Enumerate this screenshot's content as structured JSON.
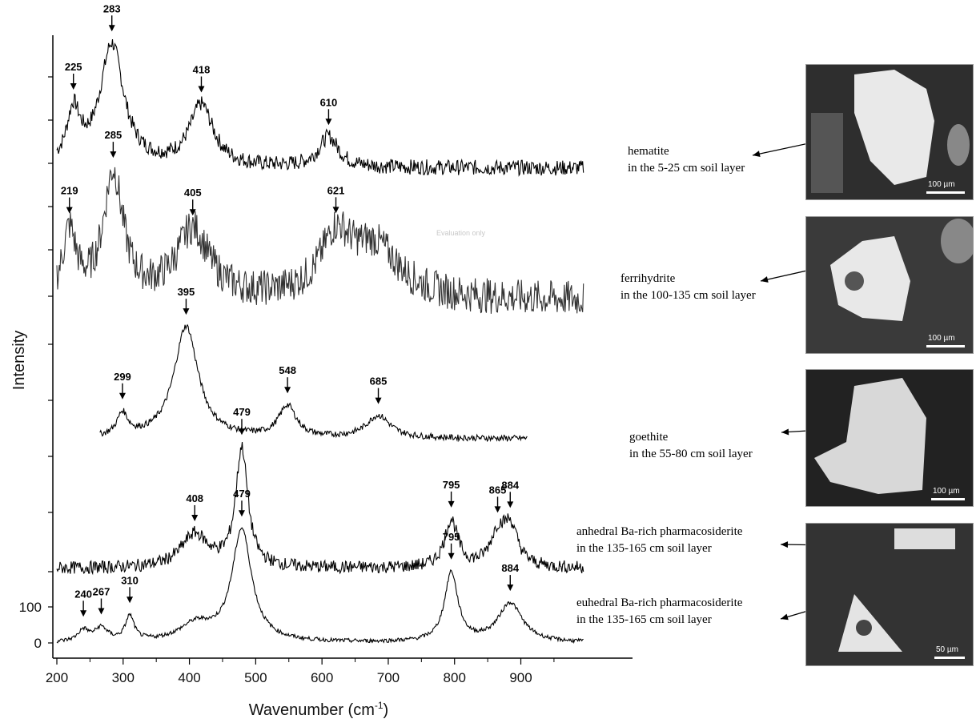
{
  "chart_data": {
    "type": "line",
    "xlabel_main": "Wavenumber (cm",
    "xlabel_sup": "-1",
    "xlabel_close": ")",
    "ylabel": "Intensity",
    "xlim": [
      195,
      1000
    ],
    "xticks": [
      200,
      300,
      400,
      500,
      600,
      700,
      800,
      900
    ],
    "yticks_labeled": [
      0,
      100
    ],
    "series": [
      {
        "name": "hematite",
        "caption": [
          "hematite",
          "in the 5-25 cm soil layer"
        ],
        "x_range": [
          200,
          995
        ],
        "peaks": [
          225,
          283,
          418,
          610
        ],
        "band_widths": [
          12,
          22,
          22,
          18
        ],
        "band_heights": [
          0.42,
          1.0,
          0.5,
          0.25
        ],
        "noise": 0.07
      },
      {
        "name": "ferrihydrite",
        "caption": [
          "ferrihydrite",
          "in the 100-135 cm soil layer"
        ],
        "x_range": [
          200,
          995
        ],
        "peaks": [
          219,
          285,
          405,
          621
        ],
        "band_widths": [
          12,
          18,
          30,
          28
        ],
        "band_heights": [
          0.52,
          1.0,
          0.55,
          0.45
        ],
        "extra_bands": [
          {
            "x": 680,
            "w": 45,
            "h": 0.4
          }
        ],
        "noise": 0.16
      },
      {
        "name": "goethite",
        "caption": [
          "goethite",
          "in  the 55-80 cm soil layer"
        ],
        "x_range": [
          265,
          910
        ],
        "peaks": [
          299,
          395,
          548,
          685
        ],
        "band_widths": [
          10,
          22,
          16,
          22
        ],
        "band_heights": [
          0.2,
          1.0,
          0.28,
          0.2
        ],
        "noise": 0.03
      },
      {
        "name": "anhedral Ba-rich pharmacosiderite",
        "caption": [
          "anhedral Ba-rich pharmacosiderite",
          "in the 135-165 cm soil layer"
        ],
        "x_range": [
          200,
          995
        ],
        "peaks": [
          408,
          479,
          795,
          865,
          884
        ],
        "band_widths": [
          25,
          11,
          12,
          14,
          14
        ],
        "band_heights": [
          0.28,
          1.0,
          0.4,
          0.25,
          0.32
        ],
        "noise": 0.06
      },
      {
        "name": "euhedral Ba-rich pharmacosiderite",
        "caption": [
          "euhedral Ba-rich pharmacosiderite",
          "in the 135-165 cm soil layer"
        ],
        "x_range": [
          200,
          995
        ],
        "peaks": [
          240,
          267,
          310,
          479,
          795,
          884
        ],
        "band_widths": [
          10,
          12,
          8,
          18,
          12,
          22
        ],
        "band_heights": [
          0.1,
          0.12,
          0.22,
          1.0,
          0.62,
          0.35
        ],
        "extra_bands": [
          {
            "x": 410,
            "w": 30,
            "h": 0.15
          }
        ],
        "noise": 0.02
      }
    ]
  },
  "micrographs": [
    {
      "name": "hematite",
      "scale_text": "100 µm"
    },
    {
      "name": "ferrihydrite",
      "scale_text": "100 µm"
    },
    {
      "name": "goethite",
      "scale_text": "100 µm"
    },
    {
      "name": "pharmacosiderite",
      "scale_text": "50 µm"
    }
  ],
  "faint_overlay_text": "Evaluation only"
}
